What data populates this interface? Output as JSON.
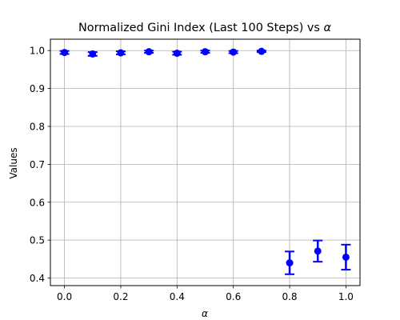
{
  "chart_data": {
    "type": "scatter",
    "title": "Normalized Gini Index (Last 100 Steps) vs",
    "title_symbol": "α",
    "xlabel": "α",
    "ylabel": "Values",
    "xlim": [
      -0.05,
      1.05
    ],
    "ylim": [
      0.38,
      1.03
    ],
    "x_ticks": [
      0.0,
      0.2,
      0.4,
      0.6,
      0.8,
      1.0
    ],
    "x_tick_labels": [
      "0.0",
      "0.2",
      "0.4",
      "0.6",
      "0.8",
      "1.0"
    ],
    "y_ticks": [
      0.4,
      0.5,
      0.6,
      0.7,
      0.8,
      0.9,
      1.0
    ],
    "y_tick_labels": [
      "0.4",
      "0.5",
      "0.6",
      "0.7",
      "0.8",
      "0.9",
      "1.0"
    ],
    "grid": true,
    "color": "#0000ff",
    "x": [
      0.0,
      0.1,
      0.2,
      0.3,
      0.4,
      0.5,
      0.6,
      0.7,
      0.8,
      0.9,
      1.0
    ],
    "y": [
      0.995,
      0.991,
      0.994,
      0.997,
      0.993,
      0.997,
      0.996,
      0.998,
      0.44,
      0.471,
      0.455
    ],
    "error": [
      0.004,
      0.005,
      0.004,
      0.003,
      0.004,
      0.003,
      0.003,
      0.002,
      0.03,
      0.028,
      0.033
    ]
  }
}
